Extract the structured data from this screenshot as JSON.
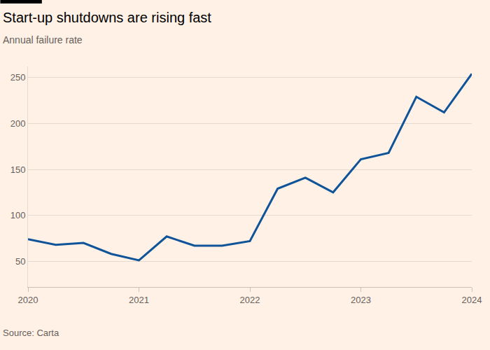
{
  "chart_data": {
    "type": "line",
    "title": "Start-up shutdowns are rising fast",
    "subtitle": "Annual failure rate",
    "source": "Source: Carta",
    "categories": [
      "2020",
      null,
      null,
      null,
      "2021",
      null,
      null,
      null,
      "2022",
      null,
      null,
      null,
      "2023",
      null,
      null,
      null,
      "2024"
    ],
    "values": [
      74,
      68,
      70,
      58,
      51,
      77,
      67,
      67,
      72,
      129,
      141,
      125,
      161,
      168,
      229,
      212,
      254
    ],
    "color": "#0f5499",
    "ylim": [
      22,
      262
    ],
    "yticks": [
      50,
      100,
      150,
      200,
      250
    ],
    "grid": true
  }
}
